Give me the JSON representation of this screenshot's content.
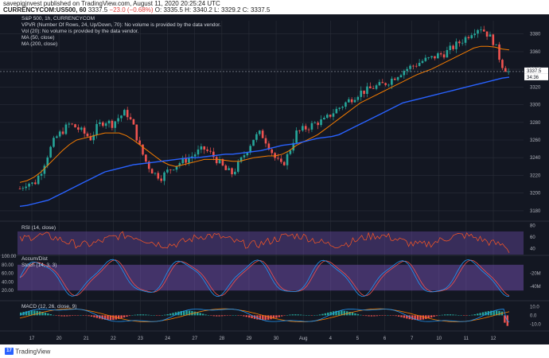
{
  "header": {
    "published": "savepigjnvest published on TradingView.com, August 11, 2020 20:25:24 UTC",
    "symbol": "CURRENCYCOM:US500, 60",
    "last": "3337.5",
    "change": "−23.0 (−0.68%)",
    "ohlc_o": "O: 3335.5",
    "ohlc_h": "H: 3340.2",
    "ohlc_l": "L: 3329.2",
    "ohlc_c": "C: 3337.5"
  },
  "legend": {
    "title": "S&P 500, 1h, CURRENCYCOM",
    "vpvr": "VPVR (Number Of Rows, 24, Up/Down, 70): No volume is provided by the data vendor.",
    "vol": "Vol (20): No volume is provided by the data vendor.",
    "ma50": "MA (50, close)",
    "ma200": "MA (200, close)"
  },
  "panels": {
    "rsi": "RSI (14, close)",
    "accum": "Accum/Dist",
    "stoch": "Stoch (14, 3, 3)",
    "macd": "MACD (12, 26, close, 9)"
  },
  "footer": {
    "brand": "TradingView",
    "logo_letter": "17"
  },
  "colors": {
    "bg": "#131722",
    "up": "#26a69a",
    "down": "#ef5350",
    "ma50": "#f57c00",
    "ma200": "#2962ff",
    "rsi": "#ff5722",
    "purple": "#7e57c2",
    "stoch_k": "#2196f3",
    "stoch_d": "#ef5350",
    "grid": "#2a2e39",
    "text": "#b2b5be"
  },
  "chart_data": {
    "type": "candlestick",
    "title": "S&P 500, 1h, CURRENCYCOM",
    "x_ticks": [
      "17",
      "20",
      "21",
      "22",
      "23",
      "24",
      "27",
      "28",
      "29",
      "30",
      "Aug",
      "4",
      "5",
      "6",
      "7",
      "10",
      "11",
      "12"
    ],
    "price_axis": {
      "ticks": [
        3180,
        3200,
        3220,
        3240,
        3260,
        3280,
        3300,
        3320,
        3340,
        3360,
        3380
      ],
      "range": [
        3170,
        3395
      ],
      "last_price": "3337.5",
      "countdown": "34:36"
    },
    "price_path": [
      3205,
      3212,
      3210,
      3225,
      3245,
      3262,
      3270,
      3278,
      3274,
      3268,
      3262,
      3276,
      3282,
      3278,
      3286,
      3292,
      3276,
      3250,
      3232,
      3222,
      3218,
      3226,
      3232,
      3236,
      3240,
      3246,
      3250,
      3244,
      3236,
      3226,
      3222,
      3234,
      3248,
      3262,
      3268,
      3256,
      3240,
      3230,
      3246,
      3268,
      3272,
      3276,
      3280,
      3282,
      3290,
      3296,
      3302,
      3308,
      3314,
      3316,
      3320,
      3322,
      3326,
      3332,
      3338,
      3342,
      3346,
      3350,
      3352,
      3356,
      3358,
      3364,
      3370,
      3376,
      3384,
      3388,
      3380,
      3370,
      3346,
      3337
    ],
    "ma50_path": [
      3212,
      3214,
      3218,
      3224,
      3232,
      3240,
      3248,
      3255,
      3260,
      3262,
      3264,
      3266,
      3268,
      3268,
      3268,
      3265,
      3260,
      3254,
      3248,
      3242,
      3236,
      3232,
      3230,
      3232,
      3234,
      3236,
      3238,
      3238,
      3238,
      3237,
      3236,
      3236,
      3238,
      3240,
      3241,
      3242,
      3242,
      3244,
      3248,
      3254,
      3258,
      3262,
      3266,
      3272,
      3278,
      3284,
      3290,
      3296,
      3302,
      3306,
      3310,
      3314,
      3318,
      3322,
      3326,
      3330,
      3334,
      3337,
      3340,
      3344,
      3348,
      3352,
      3356,
      3360,
      3364,
      3366,
      3366,
      3365,
      3363,
      3362
    ],
    "ma200_path": [
      3185,
      3186,
      3188,
      3190,
      3192,
      3196,
      3200,
      3204,
      3208,
      3212,
      3216,
      3220,
      3224,
      3226,
      3228,
      3230,
      3232,
      3233,
      3234,
      3235,
      3236,
      3237,
      3238,
      3239,
      3240,
      3240,
      3241,
      3242,
      3243,
      3244,
      3244,
      3245,
      3246,
      3247,
      3248,
      3250,
      3252,
      3254,
      3255,
      3256,
      3258,
      3260,
      3262,
      3263,
      3264,
      3266,
      3270,
      3274,
      3278,
      3282,
      3286,
      3290,
      3294,
      3298,
      3302,
      3304,
      3306,
      3308,
      3310,
      3312,
      3314,
      3316,
      3318,
      3320,
      3322,
      3324,
      3326,
      3328,
      3330,
      3331
    ],
    "rsi": {
      "ticks": [
        40,
        60,
        80
      ],
      "range": [
        30,
        85
      ],
      "band": [
        30,
        70
      ]
    },
    "stoch": {
      "left_ticks": [
        20,
        40,
        60,
        80,
        100
      ],
      "right_ticks": [
        "-20M",
        "-40M"
      ],
      "range": [
        0,
        100
      ],
      "band": [
        20,
        80
      ]
    },
    "macd": {
      "ticks": [
        10,
        0,
        -10
      ],
      "range": [
        -18,
        15
      ]
    }
  }
}
